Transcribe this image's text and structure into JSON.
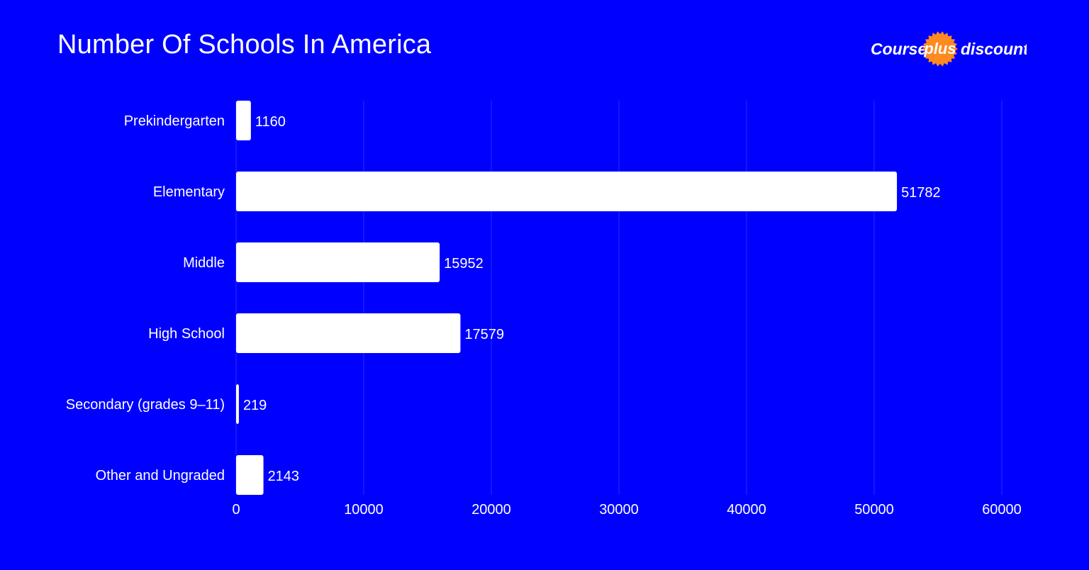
{
  "header": {
    "title": "Number Of Schools In America"
  },
  "logo": {
    "word_left": "Course",
    "word_badge": "plus",
    "word_right": "discount",
    "badge_color": "#FF8A1F"
  },
  "colors": {
    "background": "#0000FF",
    "bar": "#FFFFFF",
    "text": "#FFFFFF",
    "grid": "#2B2BFF"
  },
  "chart_data": {
    "type": "bar",
    "orientation": "horizontal",
    "title": "Number Of Schools In America",
    "categories": [
      "Prekindergarten",
      "Elementary",
      "Middle",
      "High School",
      "Secondary (grades 9–11)",
      "Other and Ungraded"
    ],
    "values": [
      1160,
      51782,
      15952,
      17579,
      219,
      2143
    ],
    "xlim": [
      0,
      60000
    ],
    "xticks": [
      "0",
      "10000",
      "20000",
      "30000",
      "40000",
      "50000",
      "60000"
    ],
    "xlabel": "",
    "ylabel": "",
    "grid": true,
    "legend": "none"
  }
}
